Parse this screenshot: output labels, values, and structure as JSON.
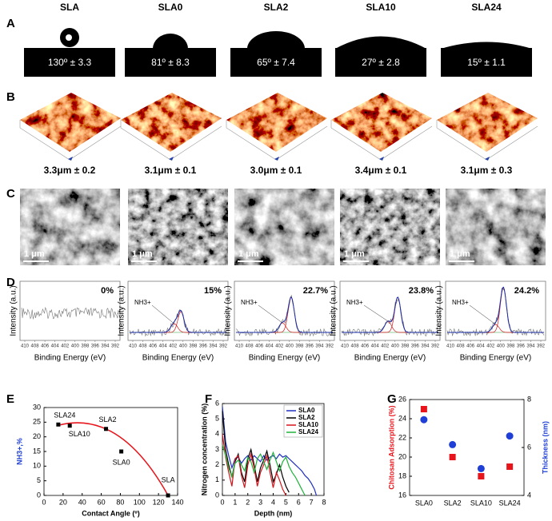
{
  "columns": [
    "SLA",
    "SLA0",
    "SLA2",
    "SLA10",
    "SLA24"
  ],
  "panel_labels": [
    "A",
    "B",
    "C",
    "D",
    "E",
    "F",
    "G"
  ],
  "panel_a": {
    "contact_angles": [
      "130º ± 3.3",
      "81º ± 8.3",
      "65º ± 7.4",
      "27º ± 2.8",
      "15º ± 1.1"
    ]
  },
  "panel_b": {
    "roughness": [
      "3.3μm ± 0.2",
      "3.1μm ± 0.1",
      "3.0μm ± 0.1",
      "3.4μm ± 0.1",
      "3.1μm ± 0.3"
    ]
  },
  "panel_c": {
    "scale_bar": "1 μm"
  },
  "panel_d": {
    "ylabel": "Intensity (a.u.)",
    "xlabel": "Binding Energy (eV)",
    "xticks": [
      410,
      408,
      406,
      404,
      402,
      400,
      398,
      396,
      394,
      392
    ],
    "percentages": [
      "0%",
      "15%",
      "22.7%",
      "23.8%",
      "24.2%"
    ],
    "annotation": "NH3+"
  },
  "chart_data": [
    {
      "type": "scatter",
      "xlabel": "Contact Angle (º)",
      "ylabel": "NH3+,%",
      "x": [
        15,
        27,
        65,
        81,
        130
      ],
      "values": [
        24.2,
        23.8,
        22.7,
        15,
        0
      ],
      "point_labels": [
        "SLA24",
        "SLA10",
        "SLA2",
        "SLA0",
        "SLA"
      ],
      "color": "#000000",
      "fit_color": "#e8141b",
      "xlim": [
        0,
        140
      ],
      "xticks": [
        0,
        20,
        40,
        60,
        80,
        100,
        120,
        140
      ],
      "ylim": [
        0,
        30
      ],
      "yticks": [
        0,
        5,
        10,
        15,
        20,
        25,
        30
      ]
    },
    {
      "type": "line",
      "xlabel": "Depth (nm)",
      "ylabel": "Nitrogen concentration (%)",
      "xlim": [
        0,
        8
      ],
      "xticks": [
        0,
        1,
        2,
        3,
        4,
        5,
        6,
        7,
        8
      ],
      "ylim": [
        0,
        6
      ],
      "yticks": [
        0,
        1,
        2,
        3,
        4,
        5,
        6
      ],
      "series": [
        {
          "name": "SLA0",
          "color": "#1f2fbf",
          "x": [
            0,
            0.25,
            0.5,
            0.75,
            1,
            1.25,
            1.5,
            1.75,
            2,
            2.25,
            2.5,
            2.75,
            3,
            3.25,
            3.5,
            3.75,
            4,
            4.25,
            4.5,
            4.75,
            5,
            5.25,
            5.5,
            5.75,
            6,
            6.25,
            6.5,
            6.75,
            7,
            7.25,
            7.4
          ],
          "values": [
            5.8,
            3.5,
            2.6,
            1.8,
            2.4,
            2.5,
            2.1,
            2.4,
            2.6,
            2.3,
            2.6,
            2.4,
            2.2,
            2.6,
            2.3,
            2.5,
            2.6,
            2.4,
            2.7,
            2.5,
            2.6,
            2.4,
            2.2,
            2.0,
            1.8,
            1.6,
            1.3,
            1.1,
            0.8,
            0.4,
            0
          ]
        },
        {
          "name": "SLA2",
          "color": "#000000",
          "x": [
            0,
            0.25,
            0.5,
            0.75,
            1,
            1.25,
            1.5,
            1.75,
            2,
            2.25,
            2.5,
            2.75,
            3,
            3.25,
            3.5,
            3.75,
            4,
            4.25,
            4.5,
            4.75,
            5,
            5.25
          ],
          "values": [
            5.5,
            3.0,
            2.0,
            1.2,
            2.2,
            2.7,
            1.5,
            0.9,
            2.4,
            3.0,
            2.0,
            0.9,
            1.8,
            2.3,
            2.9,
            2.0,
            0.9,
            1.4,
            2.0,
            1.2,
            0.6,
            0.2
          ]
        },
        {
          "name": "SLA10",
          "color": "#d4141b",
          "x": [
            0,
            0.25,
            0.5,
            0.75,
            1,
            1.25,
            1.5,
            1.75,
            2,
            2.25,
            2.5,
            2.75,
            3,
            3.25,
            3.5,
            3.75,
            4,
            4.25,
            4.5,
            4.75,
            5
          ],
          "values": [
            4.0,
            2.5,
            1.5,
            0.6,
            2.4,
            2.6,
            1.3,
            0.5,
            2.0,
            2.7,
            1.8,
            0.6,
            1.5,
            2.0,
            2.6,
            1.5,
            0.5,
            1.5,
            1.0,
            0.4,
            0
          ]
        },
        {
          "name": "SLA24",
          "color": "#1fb33a",
          "x": [
            0,
            0.25,
            0.5,
            0.75,
            1,
            1.25,
            1.5,
            1.75,
            2,
            2.25,
            2.5,
            2.75,
            3,
            3.25,
            3.5,
            3.75,
            4,
            4.25,
            4.5,
            4.75,
            5,
            5.25,
            5.5,
            5.75,
            6,
            6.25,
            6.5
          ],
          "values": [
            3.3,
            2.6,
            1.8,
            1.2,
            2.1,
            2.3,
            2.0,
            1.6,
            2.5,
            2.2,
            1.5,
            2.4,
            2.7,
            2.2,
            1.7,
            2.3,
            2.8,
            2.2,
            1.6,
            2.2,
            2.5,
            1.9,
            1.5,
            1.2,
            0.8,
            0.4,
            0
          ]
        }
      ]
    },
    {
      "type": "dot",
      "ylabel": "Chitosan Adsorption (%)",
      "y2label": "Thickness (nm)",
      "categories": [
        "SLA0",
        "SLA2",
        "SLA10",
        "SLA24"
      ],
      "ylim": [
        16,
        26
      ],
      "yticks": [
        16,
        18,
        20,
        22,
        24,
        26
      ],
      "y2lim": [
        4,
        8
      ],
      "y2ticks": [
        4,
        6,
        8
      ],
      "series": [
        {
          "color": "#e8141b",
          "marker": "square",
          "values": [
            25,
            20,
            18,
            19
          ]
        },
        {
          "color": "#1f3fd6",
          "marker": "circle",
          "axis": "y2",
          "values": [
            7.16,
            6.12,
            5.12,
            6.48
          ]
        }
      ]
    }
  ]
}
